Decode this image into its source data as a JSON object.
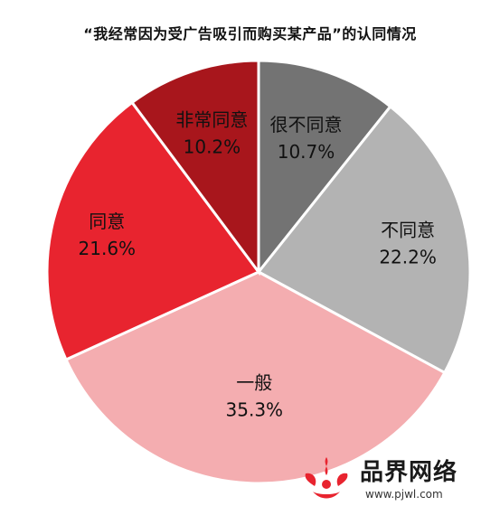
{
  "chart_data": {
    "type": "pie",
    "title": "“我经常因为受广告吸引而购买某产品”的认同情况",
    "start_category": "很不同意",
    "direction": "clockwise",
    "slices": [
      {
        "label": "很不同意",
        "value": 10.7,
        "value_label": "10.7%",
        "color": "#737373",
        "text_color": "#111111"
      },
      {
        "label": "不同意",
        "value": 22.2,
        "value_label": "22.2%",
        "color": "#b3b3b3",
        "text_color": "#111111"
      },
      {
        "label": "一般",
        "value": 35.3,
        "value_label": "35.3%",
        "color": "#f4adb0",
        "text_color": "#111111"
      },
      {
        "label": "同意",
        "value": 21.6,
        "value_label": "21.6%",
        "color": "#e8242f",
        "text_color": "#111111"
      },
      {
        "label": "非常同意",
        "value": 10.2,
        "value_label": "10.2%",
        "color": "#a8161c",
        "text_color": "#111111"
      }
    ]
  },
  "watermark": {
    "brand": "品界网络",
    "url": "www.pjwl.com"
  }
}
